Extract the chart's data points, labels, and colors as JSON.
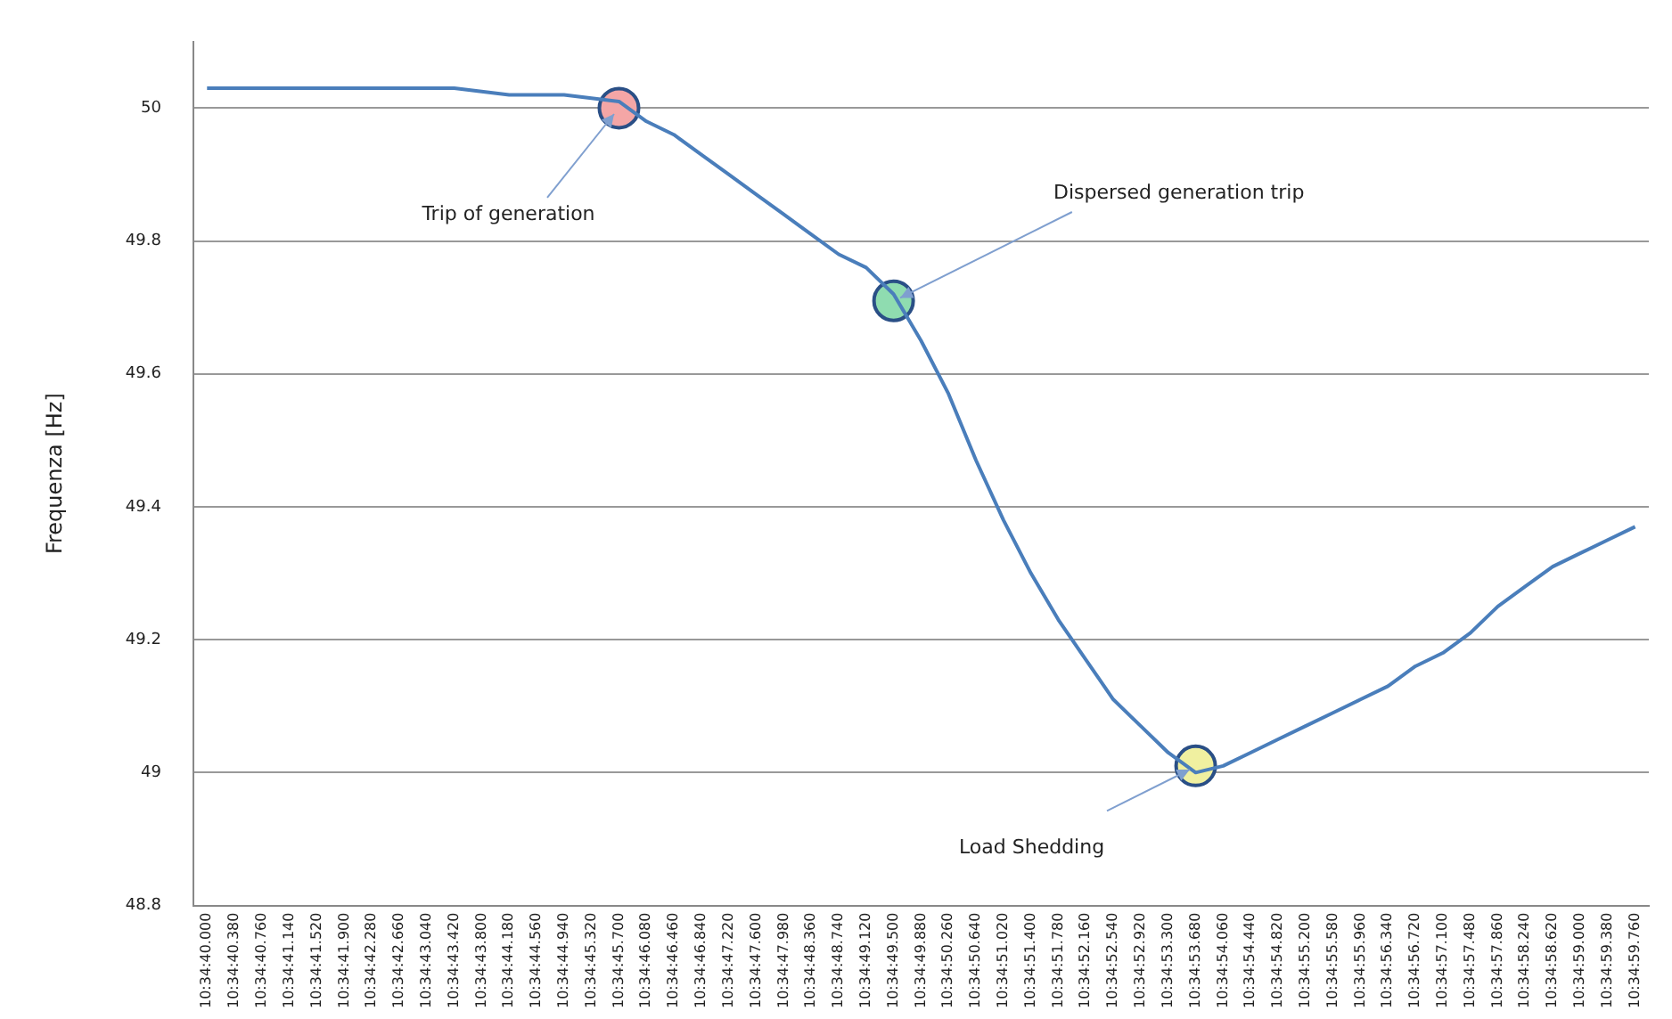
{
  "chart_data": {
    "type": "line",
    "ylabel": "Frequenza [Hz]",
    "categories": [
      "10:34:40.000",
      "10:34:40.380",
      "10:34:40.760",
      "10:34:41.140",
      "10:34:41.520",
      "10:34:41.900",
      "10:34:42.280",
      "10:34:42.660",
      "10:34:43.040",
      "10:34:43.420",
      "10:34:43.800",
      "10:34:44.180",
      "10:34:44.560",
      "10:34:44.940",
      "10:34:45.320",
      "10:34:45.700",
      "10:34:46.080",
      "10:34:46.460",
      "10:34:46.840",
      "10:34:47.220",
      "10:34:47.600",
      "10:34:47.980",
      "10:34:48.360",
      "10:34:48.740",
      "10:34:49.120",
      "10:34:49.500",
      "10:34:49.880",
      "10:34:50.260",
      "10:34:50.640",
      "10:34:51.020",
      "10:34:51.400",
      "10:34:51.780",
      "10:34:52.160",
      "10:34:52.540",
      "10:34:52.920",
      "10:34:53.300",
      "10:34:53.680",
      "10:34:54.060",
      "10:34:54.440",
      "10:34:54.820",
      "10:34:55.200",
      "10:34:55.580",
      "10:34:55.960",
      "10:34:56.340",
      "10:34:56.720",
      "10:34:57.100",
      "10:34:57.480",
      "10:34:57.860",
      "10:34:58.240",
      "10:34:58.620",
      "10:34:59.000",
      "10:34:59.380",
      "10:34:59.760"
    ],
    "series": [
      {
        "color": "#4a7ebb",
        "values": [
          50.03,
          50.03,
          50.03,
          50.03,
          50.03,
          50.03,
          50.03,
          50.03,
          50.03,
          50.03,
          50.025,
          50.02,
          50.02,
          50.02,
          50.015,
          50.01,
          49.98,
          49.96,
          49.93,
          49.9,
          49.87,
          49.84,
          49.81,
          49.78,
          49.76,
          49.72,
          49.65,
          49.57,
          49.47,
          49.38,
          49.3,
          49.23,
          49.17,
          49.11,
          49.07,
          49.03,
          49.0,
          49.01,
          49.03,
          49.05,
          49.07,
          49.09,
          49.11,
          49.13,
          49.16,
          49.18,
          49.21,
          49.25,
          49.28,
          49.31,
          49.33,
          49.35,
          49.37
        ]
      },
      {
        "type": "scatter",
        "x": [
          "10:34:45.700",
          "10:34:49.500",
          "10:34:53.680"
        ],
        "values": [
          50.0,
          49.71,
          49.01
        ],
        "colors": [
          "#f4a6a6",
          "#8fdcb0",
          "#f0f0a0"
        ]
      }
    ],
    "ylim": [
      48.8,
      50.1
    ],
    "yticks": [
      48.8,
      49,
      49.2,
      49.4,
      49.6,
      49.8,
      50
    ],
    "grid": "y",
    "legend": false,
    "annotations": [
      {
        "text": "Trip of generation",
        "x": "10:34:45.700",
        "y": 50.0
      },
      {
        "text": "Dispersed generation trip",
        "x": "10:34:49.500",
        "y": 49.71
      },
      {
        "text": "Load Shedding",
        "x": "10:34:53.680",
        "y": 49.01
      }
    ]
  }
}
